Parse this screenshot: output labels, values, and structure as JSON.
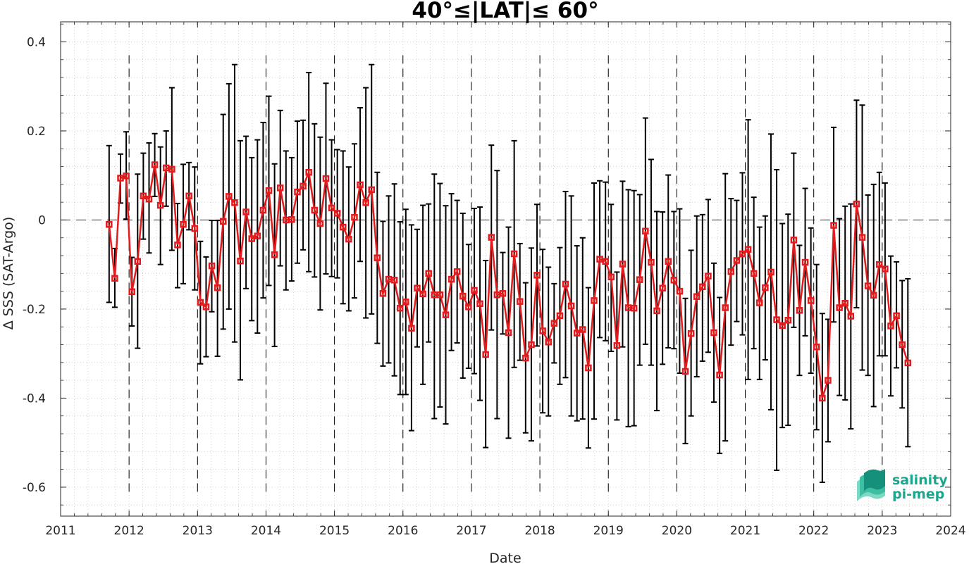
{
  "chart_data": {
    "type": "line",
    "title": "40°≤|LAT|≤ 60°",
    "xlabel": "Date",
    "ylabel": "Δ SSS (SAT-Argo)",
    "xlim": [
      2011.0,
      2024.0
    ],
    "ylim": [
      -0.665,
      0.445
    ],
    "x_ticks": [
      2011,
      2012,
      2013,
      2014,
      2015,
      2016,
      2017,
      2018,
      2019,
      2020,
      2021,
      2022,
      2023,
      2024
    ],
    "x_tick_labels": [
      "2011",
      "2012",
      "2013",
      "2014",
      "2015",
      "2016",
      "2017",
      "2018",
      "2019",
      "2020",
      "2021",
      "2022",
      "2023",
      "2024"
    ],
    "y_ticks": [
      -0.6,
      -0.4,
      -0.2,
      0,
      0.2,
      0.4
    ],
    "y_tick_labels": [
      "-0.6",
      "-0.4",
      "-0.2",
      "0",
      "0.2",
      "0.4"
    ],
    "grid": "minor dotted",
    "zero_line": "dashed",
    "year_markers": "dashed vertical lines at each year",
    "series": [
      {
        "color": "#e41a1c",
        "marker": "square",
        "errorbar_color": "#000000",
        "points": [
          {
            "x": "2011-09",
            "y": -0.01,
            "lo": -0.185,
            "hi": 0.167
          },
          {
            "x": "2011-10",
            "y": -0.131,
            "lo": -0.196,
            "hi": -0.064
          },
          {
            "x": "2011-11",
            "y": 0.094,
            "lo": 0.038,
            "hi": 0.148
          },
          {
            "x": "2011-12",
            "y": 0.099,
            "lo": 0.002,
            "hi": 0.198
          },
          {
            "x": "2012-01",
            "y": -0.161,
            "lo": -0.238,
            "hi": -0.084
          },
          {
            "x": "2012-02",
            "y": -0.093,
            "lo": -0.288,
            "hi": 0.103
          },
          {
            "x": "2012-03",
            "y": 0.054,
            "lo": -0.043,
            "hi": 0.15
          },
          {
            "x": "2012-04",
            "y": 0.047,
            "lo": -0.074,
            "hi": 0.173
          },
          {
            "x": "2012-05",
            "y": 0.124,
            "lo": 0.053,
            "hi": 0.194
          },
          {
            "x": "2012-06",
            "y": 0.033,
            "lo": -0.1,
            "hi": 0.164
          },
          {
            "x": "2012-07",
            "y": 0.117,
            "lo": 0.031,
            "hi": 0.2
          },
          {
            "x": "2012-08",
            "y": 0.114,
            "lo": -0.068,
            "hi": 0.297
          },
          {
            "x": "2012-09",
            "y": -0.056,
            "lo": -0.152,
            "hi": 0.037
          },
          {
            "x": "2012-10",
            "y": -0.01,
            "lo": -0.143,
            "hi": 0.125
          },
          {
            "x": "2012-11",
            "y": 0.054,
            "lo": -0.022,
            "hi": 0.129
          },
          {
            "x": "2012-12",
            "y": -0.019,
            "lo": -0.157,
            "hi": 0.119
          },
          {
            "x": "2013-01",
            "y": -0.185,
            "lo": -0.323,
            "hi": -0.048
          },
          {
            "x": "2013-02",
            "y": -0.195,
            "lo": -0.307,
            "hi": -0.083
          },
          {
            "x": "2013-03",
            "y": -0.103,
            "lo": -0.206,
            "hi": -0.001
          },
          {
            "x": "2013-04",
            "y": -0.152,
            "lo": -0.306,
            "hi": -0.001
          },
          {
            "x": "2013-05",
            "y": -0.003,
            "lo": -0.245,
            "hi": 0.237
          },
          {
            "x": "2013-06",
            "y": 0.053,
            "lo": -0.2,
            "hi": 0.306
          },
          {
            "x": "2013-07",
            "y": 0.039,
            "lo": -0.274,
            "hi": 0.349
          },
          {
            "x": "2013-08",
            "y": -0.092,
            "lo": -0.359,
            "hi": 0.178
          },
          {
            "x": "2013-09",
            "y": 0.018,
            "lo": -0.154,
            "hi": 0.188
          },
          {
            "x": "2013-10",
            "y": -0.042,
            "lo": -0.226,
            "hi": 0.14
          },
          {
            "x": "2013-11",
            "y": -0.036,
            "lo": -0.254,
            "hi": 0.18
          },
          {
            "x": "2013-12",
            "y": 0.022,
            "lo": -0.175,
            "hi": 0.219
          },
          {
            "x": "2014-01",
            "y": 0.066,
            "lo": -0.147,
            "hi": 0.278
          },
          {
            "x": "2014-02",
            "y": -0.078,
            "lo": -0.284,
            "hi": 0.126
          },
          {
            "x": "2014-03",
            "y": 0.072,
            "lo": -0.103,
            "hi": 0.246
          },
          {
            "x": "2014-04",
            "y": 0.0,
            "lo": -0.157,
            "hi": 0.155
          },
          {
            "x": "2014-05",
            "y": 0.001,
            "lo": -0.137,
            "hi": 0.14
          },
          {
            "x": "2014-06",
            "y": 0.063,
            "lo": -0.097,
            "hi": 0.222
          },
          {
            "x": "2014-07",
            "y": 0.076,
            "lo": -0.067,
            "hi": 0.224
          },
          {
            "x": "2014-08",
            "y": 0.107,
            "lo": -0.116,
            "hi": 0.331
          },
          {
            "x": "2014-09",
            "y": 0.022,
            "lo": -0.128,
            "hi": 0.216
          },
          {
            "x": "2014-10",
            "y": -0.008,
            "lo": -0.202,
            "hi": 0.186
          },
          {
            "x": "2014-11",
            "y": 0.093,
            "lo": -0.121,
            "hi": 0.307
          },
          {
            "x": "2014-12",
            "y": 0.027,
            "lo": -0.127,
            "hi": 0.18
          },
          {
            "x": "2015-01",
            "y": 0.015,
            "lo": -0.13,
            "hi": 0.158
          },
          {
            "x": "2015-02",
            "y": -0.016,
            "lo": -0.188,
            "hi": 0.155
          },
          {
            "x": "2015-03",
            "y": -0.043,
            "lo": -0.204,
            "hi": 0.119
          },
          {
            "x": "2015-04",
            "y": 0.006,
            "lo": -0.175,
            "hi": 0.171
          },
          {
            "x": "2015-05",
            "y": 0.079,
            "lo": -0.093,
            "hi": 0.252
          },
          {
            "x": "2015-06",
            "y": 0.039,
            "lo": -0.22,
            "hi": 0.297
          },
          {
            "x": "2015-07",
            "y": 0.068,
            "lo": -0.211,
            "hi": 0.349
          },
          {
            "x": "2015-08",
            "y": -0.085,
            "lo": -0.277,
            "hi": 0.107
          },
          {
            "x": "2015-09",
            "y": -0.165,
            "lo": -0.328,
            "hi": -0.003
          },
          {
            "x": "2015-10",
            "y": -0.133,
            "lo": -0.321,
            "hi": 0.054
          },
          {
            "x": "2015-11",
            "y": -0.135,
            "lo": -0.35,
            "hi": 0.081
          },
          {
            "x": "2015-12",
            "y": -0.198,
            "lo": -0.392,
            "hi": -0.004
          },
          {
            "x": "2016-01",
            "y": -0.184,
            "lo": -0.392,
            "hi": 0.024
          },
          {
            "x": "2016-02",
            "y": -0.243,
            "lo": -0.473,
            "hi": -0.011
          },
          {
            "x": "2016-03",
            "y": -0.153,
            "lo": -0.285,
            "hi": -0.021
          },
          {
            "x": "2016-04",
            "y": -0.166,
            "lo": -0.369,
            "hi": 0.033
          },
          {
            "x": "2016-05",
            "y": -0.12,
            "lo": -0.274,
            "hi": 0.036
          },
          {
            "x": "2016-06",
            "y": -0.168,
            "lo": -0.446,
            "hi": 0.103
          },
          {
            "x": "2016-07",
            "y": -0.168,
            "lo": -0.42,
            "hi": 0.082
          },
          {
            "x": "2016-08",
            "y": -0.213,
            "lo": -0.458,
            "hi": 0.032
          },
          {
            "x": "2016-09",
            "y": -0.133,
            "lo": -0.293,
            "hi": 0.059
          },
          {
            "x": "2016-10",
            "y": -0.116,
            "lo": -0.276,
            "hi": 0.044
          },
          {
            "x": "2016-11",
            "y": -0.171,
            "lo": -0.355,
            "hi": 0.015
          },
          {
            "x": "2016-12",
            "y": -0.195,
            "lo": -0.333,
            "hi": -0.055
          },
          {
            "x": "2017-01",
            "y": -0.158,
            "lo": -0.345,
            "hi": 0.026
          },
          {
            "x": "2017-02",
            "y": -0.188,
            "lo": -0.405,
            "hi": 0.029
          },
          {
            "x": "2017-03",
            "y": -0.302,
            "lo": -0.511,
            "hi": -0.091
          },
          {
            "x": "2017-04",
            "y": -0.039,
            "lo": -0.247,
            "hi": 0.168
          },
          {
            "x": "2017-05",
            "y": -0.168,
            "lo": -0.446,
            "hi": 0.111
          },
          {
            "x": "2017-06",
            "y": -0.165,
            "lo": -0.256,
            "hi": -0.073
          },
          {
            "x": "2017-07",
            "y": -0.253,
            "lo": -0.49,
            "hi": -0.016
          },
          {
            "x": "2017-08",
            "y": -0.076,
            "lo": -0.331,
            "hi": 0.178
          },
          {
            "x": "2017-09",
            "y": -0.183,
            "lo": -0.315,
            "hi": -0.053
          },
          {
            "x": "2017-10",
            "y": -0.31,
            "lo": -0.478,
            "hi": -0.141
          },
          {
            "x": "2017-11",
            "y": -0.28,
            "lo": -0.496,
            "hi": -0.063
          },
          {
            "x": "2017-12",
            "y": -0.124,
            "lo": -0.283,
            "hi": 0.035
          },
          {
            "x": "2018-01",
            "y": -0.249,
            "lo": -0.433,
            "hi": -0.066
          },
          {
            "x": "2018-02",
            "y": -0.274,
            "lo": -0.44,
            "hi": -0.106
          },
          {
            "x": "2018-03",
            "y": -0.232,
            "lo": -0.321,
            "hi": -0.143
          },
          {
            "x": "2018-04",
            "y": -0.215,
            "lo": -0.369,
            "hi": -0.062
          },
          {
            "x": "2018-05",
            "y": -0.144,
            "lo": -0.354,
            "hi": 0.064
          },
          {
            "x": "2018-06",
            "y": -0.193,
            "lo": -0.44,
            "hi": 0.054
          },
          {
            "x": "2018-07",
            "y": -0.254,
            "lo": -0.451,
            "hi": -0.058
          },
          {
            "x": "2018-08",
            "y": -0.246,
            "lo": -0.447,
            "hi": -0.04
          },
          {
            "x": "2018-09",
            "y": -0.332,
            "lo": -0.512,
            "hi": -0.152
          },
          {
            "x": "2018-10",
            "y": -0.181,
            "lo": -0.447,
            "hi": 0.083
          },
          {
            "x": "2018-11",
            "y": -0.088,
            "lo": -0.264,
            "hi": 0.088
          },
          {
            "x": "2018-12",
            "y": -0.093,
            "lo": -0.271,
            "hi": 0.085
          },
          {
            "x": "2019-01",
            "y": -0.128,
            "lo": -0.295,
            "hi": 0.035
          },
          {
            "x": "2019-02",
            "y": -0.282,
            "lo": -0.449,
            "hi": -0.117
          },
          {
            "x": "2019-03",
            "y": -0.099,
            "lo": -0.285,
            "hi": 0.087
          },
          {
            "x": "2019-04",
            "y": -0.197,
            "lo": -0.464,
            "hi": 0.068
          },
          {
            "x": "2019-05",
            "y": -0.198,
            "lo": -0.462,
            "hi": 0.066
          },
          {
            "x": "2019-06",
            "y": -0.134,
            "lo": -0.326,
            "hi": 0.057
          },
          {
            "x": "2019-07",
            "y": -0.025,
            "lo": -0.279,
            "hi": 0.229
          },
          {
            "x": "2019-08",
            "y": -0.095,
            "lo": -0.326,
            "hi": 0.136
          },
          {
            "x": "2019-09",
            "y": -0.204,
            "lo": -0.428,
            "hi": 0.019
          },
          {
            "x": "2019-10",
            "y": -0.153,
            "lo": -0.324,
            "hi": 0.018
          },
          {
            "x": "2019-11",
            "y": -0.093,
            "lo": -0.287,
            "hi": 0.101
          },
          {
            "x": "2019-12",
            "y": -0.135,
            "lo": -0.289,
            "hi": 0.019
          },
          {
            "x": "2020-01",
            "y": -0.16,
            "lo": -0.344,
            "hi": 0.025
          },
          {
            "x": "2020-02",
            "y": -0.34,
            "lo": -0.502,
            "hi": -0.176
          },
          {
            "x": "2020-03",
            "y": -0.255,
            "lo": -0.44,
            "hi": -0.068
          },
          {
            "x": "2020-04",
            "y": -0.172,
            "lo": -0.352,
            "hi": 0.009
          },
          {
            "x": "2020-05",
            "y": -0.15,
            "lo": -0.317,
            "hi": 0.012
          },
          {
            "x": "2020-06",
            "y": -0.126,
            "lo": -0.297,
            "hi": 0.046
          },
          {
            "x": "2020-07",
            "y": -0.253,
            "lo": -0.409,
            "hi": -0.097
          },
          {
            "x": "2020-08",
            "y": -0.348,
            "lo": -0.524,
            "hi": -0.174
          },
          {
            "x": "2020-09",
            "y": -0.197,
            "lo": -0.496,
            "hi": 0.104
          },
          {
            "x": "2020-10",
            "y": -0.116,
            "lo": -0.281,
            "hi": 0.048
          },
          {
            "x": "2020-11",
            "y": -0.091,
            "lo": -0.228,
            "hi": 0.044
          },
          {
            "x": "2020-12",
            "y": -0.076,
            "lo": -0.258,
            "hi": 0.106
          },
          {
            "x": "2021-01",
            "y": -0.066,
            "lo": -0.358,
            "hi": 0.225
          },
          {
            "x": "2021-02",
            "y": -0.12,
            "lo": -0.289,
            "hi": 0.051
          },
          {
            "x": "2021-03",
            "y": -0.186,
            "lo": -0.358,
            "hi": -0.016
          },
          {
            "x": "2021-04",
            "y": -0.152,
            "lo": -0.314,
            "hi": 0.009
          },
          {
            "x": "2021-05",
            "y": -0.117,
            "lo": -0.426,
            "hi": 0.193
          },
          {
            "x": "2021-06",
            "y": -0.224,
            "lo": -0.562,
            "hi": 0.113
          },
          {
            "x": "2021-07",
            "y": -0.237,
            "lo": -0.466,
            "hi": -0.008
          },
          {
            "x": "2021-08",
            "y": -0.225,
            "lo": -0.461,
            "hi": 0.013
          },
          {
            "x": "2021-09",
            "y": -0.045,
            "lo": -0.241,
            "hi": 0.15
          },
          {
            "x": "2021-10",
            "y": -0.203,
            "lo": -0.349,
            "hi": -0.057
          },
          {
            "x": "2021-11",
            "y": -0.095,
            "lo": -0.26,
            "hi": 0.071
          },
          {
            "x": "2021-12",
            "y": -0.181,
            "lo": -0.344,
            "hi": -0.018
          },
          {
            "x": "2022-01",
            "y": -0.285,
            "lo": -0.471,
            "hi": -0.1
          },
          {
            "x": "2022-02",
            "y": -0.4,
            "lo": -0.589,
            "hi": -0.21
          },
          {
            "x": "2022-03",
            "y": -0.36,
            "lo": -0.498,
            "hi": -0.223
          },
          {
            "x": "2022-04",
            "y": -0.012,
            "lo": -0.229,
            "hi": 0.208
          },
          {
            "x": "2022-05",
            "y": -0.197,
            "lo": -0.394,
            "hi": 0.003
          },
          {
            "x": "2022-06",
            "y": -0.187,
            "lo": -0.404,
            "hi": 0.031
          },
          {
            "x": "2022-07",
            "y": -0.216,
            "lo": -0.469,
            "hi": 0.036
          },
          {
            "x": "2022-08",
            "y": 0.036,
            "lo": -0.197,
            "hi": 0.269
          },
          {
            "x": "2022-09",
            "y": -0.039,
            "lo": -0.337,
            "hi": 0.258
          },
          {
            "x": "2022-10",
            "y": -0.148,
            "lo": -0.349,
            "hi": 0.056
          },
          {
            "x": "2022-11",
            "y": -0.169,
            "lo": -0.419,
            "hi": 0.08
          },
          {
            "x": "2022-12",
            "y": -0.1,
            "lo": -0.305,
            "hi": 0.107
          },
          {
            "x": "2023-01",
            "y": -0.11,
            "lo": -0.305,
            "hi": 0.083
          },
          {
            "x": "2023-02",
            "y": -0.238,
            "lo": -0.395,
            "hi": -0.081
          },
          {
            "x": "2023-03",
            "y": -0.215,
            "lo": -0.332,
            "hi": -0.094
          },
          {
            "x": "2023-04",
            "y": -0.28,
            "lo": -0.422,
            "hi": -0.136
          },
          {
            "x": "2023-05",
            "y": -0.321,
            "lo": -0.509,
            "hi": -0.132
          }
        ]
      }
    ]
  },
  "logo": {
    "line1": "salinity",
    "line2": "pi-mep",
    "color": "#19a88e"
  }
}
